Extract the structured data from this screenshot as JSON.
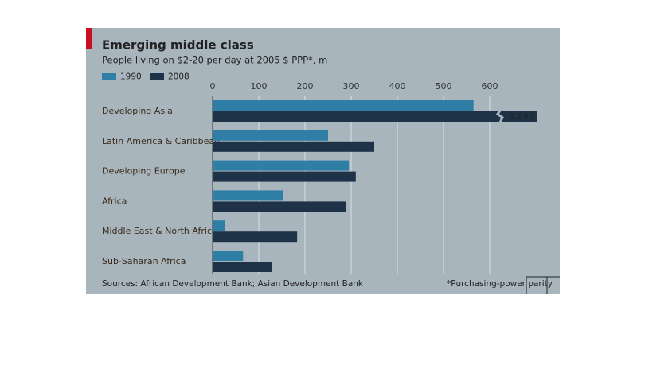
{
  "chart_data": {
    "type": "bar",
    "orientation": "horizontal",
    "title": "Emerging middle class",
    "subtitle": "People living on $2-20 per day at 2005 $ PPP*, m",
    "categories": [
      "Developing Asia",
      "Latin America & Caribbean",
      "Developing Europe",
      "Africa",
      "Middle East & North Africa",
      "Sub-Saharan Africa"
    ],
    "series": [
      {
        "name": "1990",
        "color": "#2e7ea6",
        "values": [
          565,
          250,
          295,
          152,
          26,
          66
        ]
      },
      {
        "name": "2008",
        "color": "#1e3347",
        "values": [
          1895,
          350,
          310,
          288,
          183,
          129
        ],
        "value_labels": [
          "1,895",
          null,
          null,
          null,
          null,
          null
        ]
      }
    ],
    "xlim": [
      0,
      700
    ],
    "xticks": [
      0,
      100,
      200,
      300,
      400,
      500,
      600
    ],
    "grid": true,
    "source": "Sources: African Development Bank; Asian Development Bank",
    "footnote": "*Purchasing-power parity"
  }
}
